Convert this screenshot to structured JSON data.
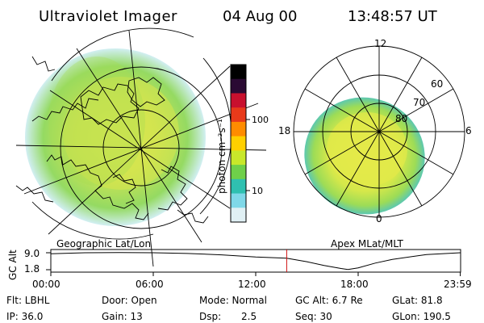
{
  "header": {
    "instrument": "Ultraviolet Imager",
    "date": "04 Aug 00",
    "time": "13:48:57 UT"
  },
  "geo_panel": {
    "label": "Geographic Lat/Lon"
  },
  "apex_panel": {
    "label": "Apex MLat/MLT",
    "mlt_labels": [
      "12",
      "18",
      "6",
      "0"
    ],
    "lat_labels": [
      "60",
      "70",
      "80"
    ]
  },
  "colorbar": {
    "unit": "photon cm⁻²s⁻¹",
    "scale": "log",
    "ticks": [
      "100",
      "10"
    ],
    "colors": [
      "#000000",
      "#2a0a33",
      "#c8102e",
      "#e83a1a",
      "#ff8c00",
      "#ffd000",
      "#c8e82a",
      "#6fd04a",
      "#2fc0b0",
      "#7fd8e8",
      "#e0f0f4"
    ]
  },
  "altitude_plot": {
    "ylabel": "GC Alt",
    "yticks": [
      "9.0",
      "1.8"
    ],
    "xticks": [
      "00:00",
      "06:00",
      "12:00",
      "18:00",
      "23:59"
    ],
    "marker_time": "13:48:57",
    "marker_color": "#d01010",
    "series": {
      "type": "line",
      "x_hours": [
        0,
        2,
        4,
        6,
        8,
        10,
        12,
        13.81,
        15,
        16,
        17,
        17.4,
        18,
        19,
        20,
        22,
        23.98
      ],
      "y_re": [
        8.6,
        9.0,
        9.1,
        9.0,
        8.7,
        8.1,
        7.2,
        6.7,
        5.2,
        3.6,
        2.3,
        1.9,
        2.6,
        4.6,
        6.2,
        8.2,
        9.0
      ],
      "ylim": [
        1.8,
        9.0
      ]
    }
  },
  "footer": {
    "filter": "Flt: LBHL",
    "door": "Door: Open",
    "mode": "Mode: Normal",
    "gc_alt": "GC Alt: 6.7 Re",
    "glat": "GLat: 81.8",
    "ip": "IP: 36.0",
    "gain": "Gain: 13",
    "dsp_label": "Dsp:",
    "dsp_value": "2.5",
    "seq": "Seq: 30",
    "glon": "GLon: 190.5"
  }
}
